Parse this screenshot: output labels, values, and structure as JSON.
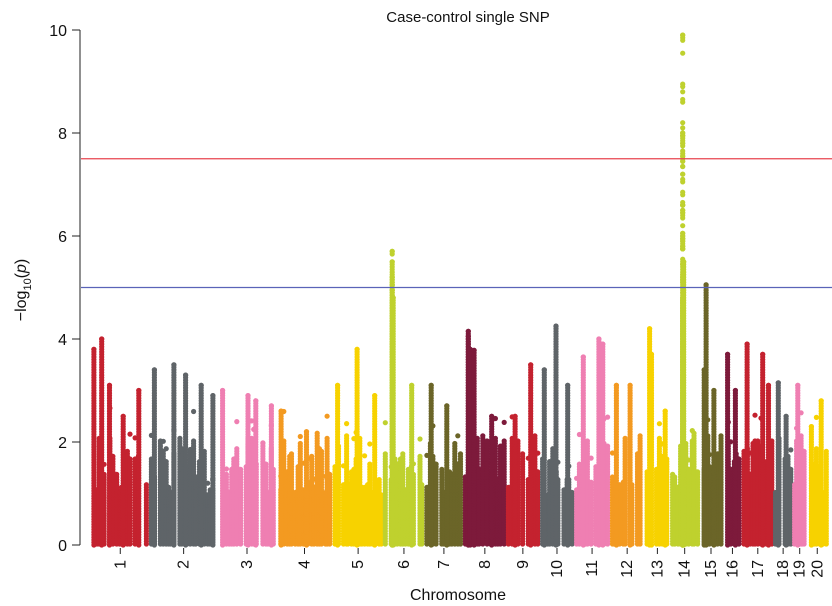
{
  "chart_data": {
    "type": "scatter",
    "title": "Case-control single SNP",
    "xlabel": "Chromosome",
    "ylabel_prefix": "−log",
    "ylabel_sub": "10",
    "ylabel_open": "(",
    "ylabel_var": "p",
    "ylabel_close": ")",
    "ylim": [
      0,
      10
    ],
    "y_ticks": [
      "0",
      "2",
      "4",
      "6",
      "8",
      "10"
    ],
    "grid": false,
    "legend": "none",
    "thresholds": [
      {
        "value": 7.5,
        "color": "#e8454f"
      },
      {
        "value": 5.0,
        "color": "#5a63b8"
      }
    ],
    "chromosomes": [
      "1",
      "2",
      "3",
      "4",
      "5",
      "6",
      "7",
      "8",
      "9",
      "10",
      "11",
      "12",
      "13",
      "14",
      "15",
      "16",
      "17",
      "18",
      "19",
      "20"
    ],
    "colors": {
      "1": "#c4222f",
      "2": "#5f6468",
      "3": "#ef7fb2",
      "4": "#f39a21",
      "5": "#f7d200",
      "6": "#bfd12e",
      "7": "#6b6528",
      "8": "#7d1a3b",
      "9": "#c4222f",
      "10": "#5f6468",
      "11": "#ef7fb2",
      "12": "#f39a21",
      "13": "#f7d200",
      "14": "#bfd12e",
      "15": "#6b6528",
      "16": "#7d1a3b",
      "17": "#c4222f",
      "18": "#5f6468",
      "19": "#ef7fb2",
      "20": "#f7d200"
    },
    "series": [
      {
        "chromosome": "1",
        "x_range": [
          0.0,
          2.9
        ],
        "top_points": [
          {
            "x": 0.1,
            "y": 3.8
          },
          {
            "x": 0.5,
            "y": 4.0
          },
          {
            "x": 0.9,
            "y": 3.1
          },
          {
            "x": 1.6,
            "y": 2.5
          },
          {
            "x": 2.4,
            "y": 3.0
          }
        ]
      },
      {
        "chromosome": "2",
        "x_range": [
          3.0,
          6.4
        ],
        "top_points": [
          {
            "x": 3.2,
            "y": 3.4
          },
          {
            "x": 4.2,
            "y": 3.5
          },
          {
            "x": 4.8,
            "y": 3.3
          },
          {
            "x": 5.6,
            "y": 3.1
          },
          {
            "x": 6.2,
            "y": 2.9
          }
        ]
      },
      {
        "chromosome": "3",
        "x_range": [
          6.5,
          9.4
        ],
        "top_points": [
          {
            "x": 6.7,
            "y": 3.0
          },
          {
            "x": 8.0,
            "y": 2.9
          },
          {
            "x": 8.4,
            "y": 2.8
          },
          {
            "x": 9.2,
            "y": 2.7
          }
        ]
      },
      {
        "chromosome": "4",
        "x_range": [
          9.5,
          12.3
        ],
        "top_points": [
          {
            "x": 9.7,
            "y": 2.6
          },
          {
            "x": 11.0,
            "y": 2.2
          }
        ]
      },
      {
        "chromosome": "5",
        "x_range": [
          12.4,
          14.9
        ],
        "top_points": [
          {
            "x": 12.6,
            "y": 3.1
          },
          {
            "x": 13.6,
            "y": 3.8
          },
          {
            "x": 14.5,
            "y": 2.9
          }
        ]
      },
      {
        "chromosome": "6",
        "x_range": [
          15.0,
          17.0
        ],
        "top_points": [
          {
            "x": 15.4,
            "y": 5.7
          },
          {
            "x": 15.4,
            "y": 5.5
          },
          {
            "x": 15.4,
            "y": 5.2
          },
          {
            "x": 15.45,
            "y": 4.8
          },
          {
            "x": 16.4,
            "y": 3.1
          }
        ]
      },
      {
        "chromosome": "7",
        "x_range": [
          17.1,
          19.0
        ],
        "top_points": [
          {
            "x": 17.4,
            "y": 3.1
          },
          {
            "x": 18.2,
            "y": 2.7
          }
        ]
      },
      {
        "chromosome": "8",
        "x_range": [
          19.1,
          21.2
        ],
        "top_points": [
          {
            "x": 19.3,
            "y": 4.15
          },
          {
            "x": 19.3,
            "y": 4.05
          },
          {
            "x": 19.4,
            "y": 3.8
          },
          {
            "x": 19.6,
            "y": 3.78
          },
          {
            "x": 20.5,
            "y": 2.5
          }
        ]
      },
      {
        "chromosome": "9",
        "x_range": [
          21.3,
          22.9
        ],
        "top_points": [
          {
            "x": 21.7,
            "y": 2.5
          },
          {
            "x": 22.5,
            "y": 3.5
          }
        ]
      },
      {
        "chromosome": "10",
        "x_range": [
          23.0,
          24.7
        ],
        "top_points": [
          {
            "x": 23.2,
            "y": 3.4
          },
          {
            "x": 23.8,
            "y": 4.25
          },
          {
            "x": 24.4,
            "y": 3.1
          }
        ]
      },
      {
        "chromosome": "11",
        "x_range": [
          24.8,
          26.5
        ],
        "top_points": [
          {
            "x": 25.2,
            "y": 3.65
          },
          {
            "x": 26.0,
            "y": 4.0
          },
          {
            "x": 26.2,
            "y": 3.9
          }
        ]
      },
      {
        "chromosome": "12",
        "x_range": [
          26.6,
          28.3
        ],
        "top_points": [
          {
            "x": 26.9,
            "y": 3.1
          },
          {
            "x": 27.6,
            "y": 3.1
          }
        ]
      },
      {
        "chromosome": "13",
        "x_range": [
          28.4,
          29.6
        ],
        "top_points": [
          {
            "x": 28.6,
            "y": 4.2
          },
          {
            "x": 28.7,
            "y": 3.7
          },
          {
            "x": 29.4,
            "y": 2.6
          }
        ]
      },
      {
        "chromosome": "14",
        "x_range": [
          29.7,
          31.1
        ],
        "top_points": [
          {
            "x": 30.3,
            "y": 9.9
          },
          {
            "x": 30.3,
            "y": 8.0
          },
          {
            "x": 30.3,
            "y": 7.95
          },
          {
            "x": 30.3,
            "y": 6.6
          },
          {
            "x": 30.3,
            "y": 5.8
          },
          {
            "x": 30.35,
            "y": 5.5
          },
          {
            "x": 30.3,
            "y": 5.2
          }
        ]
      },
      {
        "chromosome": "15",
        "x_range": [
          31.2,
          32.3
        ],
        "top_points": [
          {
            "x": 31.5,
            "y": 5.05
          },
          {
            "x": 31.4,
            "y": 3.4
          },
          {
            "x": 31.9,
            "y": 3.0
          }
        ]
      },
      {
        "chromosome": "16",
        "x_range": [
          32.4,
          33.3
        ],
        "top_points": [
          {
            "x": 32.6,
            "y": 3.7
          },
          {
            "x": 33.0,
            "y": 3.0
          }
        ]
      },
      {
        "chromosome": "17",
        "x_range": [
          33.4,
          34.9
        ],
        "top_points": [
          {
            "x": 33.6,
            "y": 3.9
          },
          {
            "x": 34.4,
            "y": 3.7
          },
          {
            "x": 34.7,
            "y": 3.1
          }
        ]
      },
      {
        "chromosome": "18",
        "x_range": [
          35.0,
          35.9
        ],
        "top_points": [
          {
            "x": 35.2,
            "y": 3.15
          },
          {
            "x": 35.6,
            "y": 2.5
          }
        ]
      },
      {
        "chromosome": "19",
        "x_range": [
          36.0,
          36.6
        ],
        "top_points": [
          {
            "x": 36.2,
            "y": 3.1
          }
        ]
      },
      {
        "chromosome": "20",
        "x_range": [
          36.7,
          37.7
        ],
        "top_points": [
          {
            "x": 36.9,
            "y": 2.3
          },
          {
            "x": 37.4,
            "y": 2.8
          }
        ]
      }
    ]
  }
}
